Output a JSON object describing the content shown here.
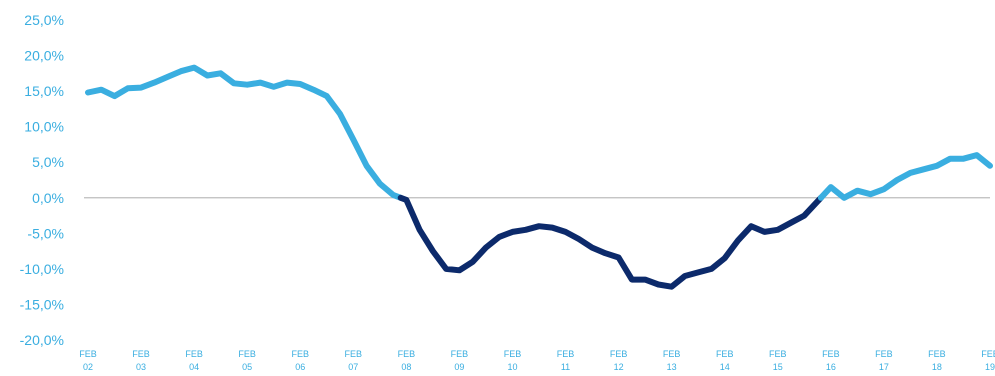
{
  "chart_data": {
    "type": "line",
    "title": "",
    "xlabel": "",
    "ylabel": "",
    "ylim": [
      -20,
      25
    ],
    "y_ticks": [
      "25,0%",
      "20,0%",
      "15,0%",
      "10,0%",
      "5,0%",
      "0,0%",
      "-5,0%",
      "-10,0%",
      "-15,0%",
      "-20,0%"
    ],
    "y_tick_values": [
      25,
      20,
      15,
      10,
      5,
      0,
      -5,
      -10,
      -15,
      -20
    ],
    "x_ticks": [
      {
        "month": "FEB",
        "year": "02"
      },
      {
        "month": "FEB",
        "year": "03"
      },
      {
        "month": "FEB",
        "year": "04"
      },
      {
        "month": "FEB",
        "year": "05"
      },
      {
        "month": "FEB",
        "year": "06"
      },
      {
        "month": "FEB",
        "year": "07"
      },
      {
        "month": "FEB",
        "year": "08"
      },
      {
        "month": "FEB",
        "year": "09"
      },
      {
        "month": "FEB",
        "year": "10"
      },
      {
        "month": "FEB",
        "year": "11"
      },
      {
        "month": "FEB",
        "year": "12"
      },
      {
        "month": "FEB",
        "year": "13"
      },
      {
        "month": "FEB",
        "year": "14"
      },
      {
        "month": "FEB",
        "year": "15"
      },
      {
        "month": "FEB",
        "year": "16"
      },
      {
        "month": "FEB",
        "year": "17"
      },
      {
        "month": "FEB",
        "year": "18"
      },
      {
        "month": "FEB",
        "year": "19"
      }
    ],
    "x_tick_values": [
      2002,
      2003,
      2004,
      2005,
      2006,
      2007,
      2008,
      2009,
      2010,
      2011,
      2012,
      2013,
      2014,
      2015,
      2016,
      2017,
      2018,
      2019
    ],
    "grid": false,
    "zero_line": true,
    "legend": "none",
    "colors": {
      "positive": "#3aaee0",
      "negative": "#0c2a6b",
      "axis_text": "#3aaee0",
      "zero_line": "#bdbdbd"
    },
    "series": [
      {
        "x": [
          "2002-02",
          "2002-05",
          "2002-08",
          "2002-11",
          "2003-02",
          "2003-05",
          "2003-08",
          "2003-11",
          "2004-02",
          "2004-05",
          "2004-08",
          "2004-11",
          "2005-02",
          "2005-05",
          "2005-08",
          "2005-11",
          "2006-02",
          "2006-05",
          "2006-08",
          "2006-11",
          "2007-02",
          "2007-05",
          "2007-08",
          "2007-11",
          "2008-02",
          "2008-05",
          "2008-08",
          "2008-11",
          "2009-02",
          "2009-05",
          "2009-08",
          "2009-11",
          "2010-02",
          "2010-05",
          "2010-08",
          "2010-11",
          "2011-02",
          "2011-05",
          "2011-08",
          "2011-11",
          "2012-02",
          "2012-05",
          "2012-08",
          "2012-11",
          "2013-02",
          "2013-05",
          "2013-08",
          "2013-11",
          "2014-02",
          "2014-05",
          "2014-08",
          "2014-11",
          "2015-02",
          "2015-05",
          "2015-08",
          "2015-11",
          "2016-02",
          "2016-05",
          "2016-08",
          "2016-11",
          "2017-02",
          "2017-05",
          "2017-08",
          "2017-11",
          "2018-02",
          "2018-05",
          "2018-08",
          "2018-11",
          "2019-02"
        ],
        "values": [
          14.8,
          15.2,
          14.3,
          15.4,
          15.5,
          16.2,
          17.0,
          17.8,
          18.3,
          17.2,
          17.5,
          16.1,
          15.9,
          16.2,
          15.6,
          16.2,
          16.0,
          15.2,
          14.3,
          11.8,
          8.2,
          4.5,
          2.0,
          0.4,
          -0.3,
          -4.5,
          -7.5,
          -10.0,
          -10.2,
          -9.0,
          -7.0,
          -5.5,
          -4.8,
          -4.5,
          -4.0,
          -4.2,
          -4.8,
          -5.8,
          -7.0,
          -7.8,
          -8.4,
          -11.5,
          -11.5,
          -12.2,
          -12.5,
          -11.0,
          -10.5,
          -10.0,
          -8.5,
          -6.0,
          -4.0,
          -4.8,
          -4.5,
          -3.5,
          -2.5,
          -0.5,
          1.5,
          0.0,
          1.0,
          0.5,
          1.2,
          2.5,
          3.5,
          4.0,
          4.5,
          5.5,
          5.5,
          6.0,
          4.5
        ]
      }
    ]
  }
}
